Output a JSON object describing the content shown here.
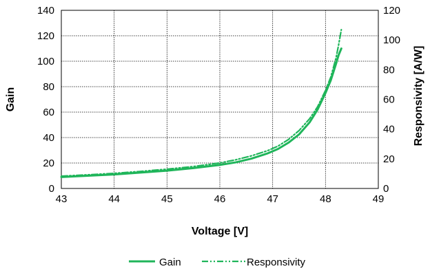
{
  "chart_data": {
    "type": "line",
    "title": "",
    "xlabel": "Voltage [V]",
    "ylabel": "Gain",
    "y2label": "Responsivity [A/W]",
    "xlim": [
      43,
      49
    ],
    "ylim": [
      0,
      140
    ],
    "y2lim": [
      0,
      120
    ],
    "xticks": [
      "43",
      "44",
      "45",
      "46",
      "47",
      "48",
      "49"
    ],
    "yticks": [
      "0",
      "20",
      "40",
      "60",
      "80",
      "100",
      "120",
      "140"
    ],
    "y2ticks": [
      "0",
      "20",
      "40",
      "60",
      "80",
      "100",
      "120"
    ],
    "grid": true,
    "legend_position": "bottom",
    "series": [
      {
        "name": "Gain",
        "axis": "left",
        "color": "#1fb55a",
        "style": "solid",
        "x": [
          43.0,
          43.5,
          44.0,
          44.5,
          45.0,
          45.5,
          46.0,
          46.3,
          46.6,
          46.9,
          47.1,
          47.3,
          47.5,
          47.7,
          47.85,
          48.0,
          48.1,
          48.2,
          48.25,
          48.3
        ],
        "y": [
          9,
          10,
          11,
          12.5,
          14,
          16,
          18.5,
          20.5,
          23.5,
          27.5,
          31,
          36,
          42.5,
          52,
          62,
          75,
          85,
          98,
          105,
          110
        ]
      },
      {
        "name": "Responsivity",
        "axis": "right",
        "color": "#1fb55a",
        "style": "dash-dot-dot",
        "x": [
          43.0,
          43.5,
          44.0,
          44.5,
          45.0,
          45.5,
          46.0,
          46.3,
          46.6,
          46.9,
          47.1,
          47.3,
          47.5,
          47.7,
          47.85,
          48.0,
          48.1,
          48.2,
          48.25,
          48.3
        ],
        "y": [
          8.3,
          9.2,
          10.2,
          11.5,
          13,
          14.8,
          17.2,
          19.3,
          22,
          25.4,
          28.5,
          33,
          39,
          47,
          55,
          66,
          75,
          88,
          97,
          107
        ]
      }
    ],
    "legend": [
      "Gain",
      "Responsivity"
    ]
  }
}
